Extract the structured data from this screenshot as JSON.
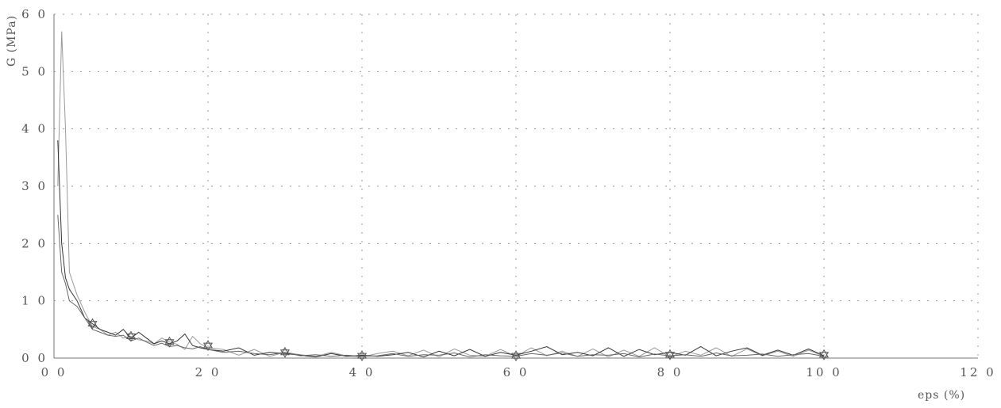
{
  "chart_data": {
    "type": "line",
    "title": "",
    "ylabel": "G (MPa)",
    "xlabel": "eps (%)",
    "xlim": [
      0,
      120
    ],
    "ylim": [
      0,
      60
    ],
    "xticks": [
      0,
      20,
      40,
      60,
      80,
      100,
      120
    ],
    "yticks": [
      0,
      10,
      20,
      30,
      40,
      50,
      60
    ],
    "xtick_labels": [
      "0 0",
      "2 0",
      "4 0",
      "6 0",
      "8 0",
      "10 0",
      "12 0"
    ],
    "ytick_labels": [
      "0 0",
      "1 0",
      "2 0",
      "3 0",
      "4 0",
      "5 0",
      "6 0"
    ],
    "grid": true,
    "series": [
      {
        "color": "#999999",
        "x": [
          0.5,
          1,
          1.5,
          2,
          3,
          4,
          5,
          6,
          7,
          8,
          9,
          10,
          11,
          12,
          13,
          14,
          15,
          16,
          17,
          18,
          19,
          20,
          22,
          24,
          26,
          28,
          30,
          32,
          34,
          36,
          38,
          40,
          42,
          44,
          46,
          48,
          50,
          52,
          54,
          56,
          58,
          60,
          62,
          64,
          66,
          68,
          70,
          72,
          74,
          76,
          78,
          80,
          82,
          84,
          86,
          88,
          90,
          92,
          94,
          96,
          98,
          100
        ],
        "y": [
          30,
          57,
          40,
          15,
          11,
          8,
          5.5,
          5,
          4,
          4.5,
          3.5,
          3.8,
          3.2,
          3,
          2.5,
          3.5,
          2.8,
          2.4,
          1.5,
          3.8,
          2.5,
          1.8,
          1.5,
          0.5,
          1.5,
          0.3,
          1.0,
          0.6,
          0.3,
          1.0,
          0.4,
          0.2,
          0.8,
          1.2,
          0.4,
          1.4,
          0.2,
          1.6,
          0.5,
          0.3,
          1.5,
          0.3,
          1.8,
          0.4,
          1.2,
          0.3,
          1.6,
          0.2,
          1.4,
          0.3,
          1.8,
          0.2,
          1.2,
          0.5,
          1.8,
          0.3,
          1.6,
          0.4,
          1.2,
          0.3,
          1.4,
          0.3
        ]
      },
      {
        "color": "#333333",
        "x": [
          0.5,
          1,
          1.5,
          2,
          3,
          4,
          5,
          6,
          7,
          8,
          9,
          10,
          11,
          12,
          13,
          14,
          15,
          16,
          17,
          18,
          19,
          20,
          22,
          24,
          26,
          28,
          30,
          32,
          34,
          36,
          38,
          40,
          42,
          44,
          46,
          48,
          50,
          52,
          54,
          56,
          58,
          60,
          62,
          64,
          66,
          68,
          70,
          72,
          74,
          76,
          78,
          80,
          82,
          84,
          86,
          88,
          90,
          92,
          94,
          96,
          98,
          100
        ],
        "y": [
          38,
          20,
          14,
          12,
          10,
          7,
          6,
          5,
          4.5,
          4,
          5,
          3.5,
          4.5,
          3.5,
          2.5,
          3,
          2.5,
          3,
          4.2,
          2.2,
          1.8,
          1.5,
          1.2,
          1.8,
          0.5,
          1.0,
          0.8,
          0.5,
          0.2,
          0.8,
          0.3,
          0.5,
          0.3,
          0.6,
          1.0,
          0.2,
          1.2,
          0.4,
          1.5,
          0.3,
          1.0,
          0.5,
          1.2,
          2.0,
          0.6,
          1.0,
          0.4,
          1.8,
          0.3,
          1.5,
          0.6,
          1.0,
          0.5,
          2.0,
          0.4,
          1.2,
          1.8,
          0.5,
          1.4,
          0.5,
          1.6,
          0.4
        ]
      },
      {
        "color": "#666666",
        "x": [
          0.5,
          1,
          1.5,
          2,
          3,
          4,
          5,
          6,
          7,
          8,
          9,
          10,
          11,
          12,
          13,
          14,
          15,
          16,
          17,
          18,
          19,
          20,
          22,
          24,
          26,
          28,
          30,
          32,
          34,
          36,
          38,
          40,
          42,
          44,
          46,
          48,
          50,
          52,
          54,
          56,
          58,
          60,
          62,
          64,
          66,
          68,
          70,
          72,
          74,
          76,
          78,
          80,
          82,
          84,
          86,
          88,
          90,
          92,
          94,
          96,
          98,
          100
        ],
        "y": [
          25,
          15,
          13,
          10,
          9,
          7,
          5,
          4.5,
          4,
          3.8,
          4,
          3,
          3.5,
          2.8,
          2.2,
          2.6,
          2.0,
          2.2,
          1.8,
          1.6,
          2.0,
          1.5,
          1.0,
          1.2,
          0.8,
          0.6,
          1.0,
          0.4,
          0.6,
          0.3,
          0.5,
          0.3,
          0.4,
          0.8,
          0.3,
          0.6,
          0.5,
          0.9,
          0.2,
          0.6,
          0.4,
          0.3,
          0.8,
          0.5,
          0.9,
          0.3,
          0.6,
          0.5,
          0.8,
          0.2,
          0.7,
          0.4,
          0.6,
          0.3,
          0.9,
          0.4,
          0.5,
          0.7,
          0.3,
          0.6,
          0.8,
          0.3
        ]
      }
    ],
    "markers": [
      {
        "x": 5,
        "y": 6
      },
      {
        "x": 10,
        "y": 3.8
      },
      {
        "x": 15,
        "y": 2.8
      },
      {
        "x": 20,
        "y": 2.2
      },
      {
        "x": 30,
        "y": 1.0
      },
      {
        "x": 40,
        "y": 0.4
      },
      {
        "x": 60,
        "y": 0.4
      },
      {
        "x": 80,
        "y": 0.6
      },
      {
        "x": 100,
        "y": 0.6
      }
    ]
  }
}
